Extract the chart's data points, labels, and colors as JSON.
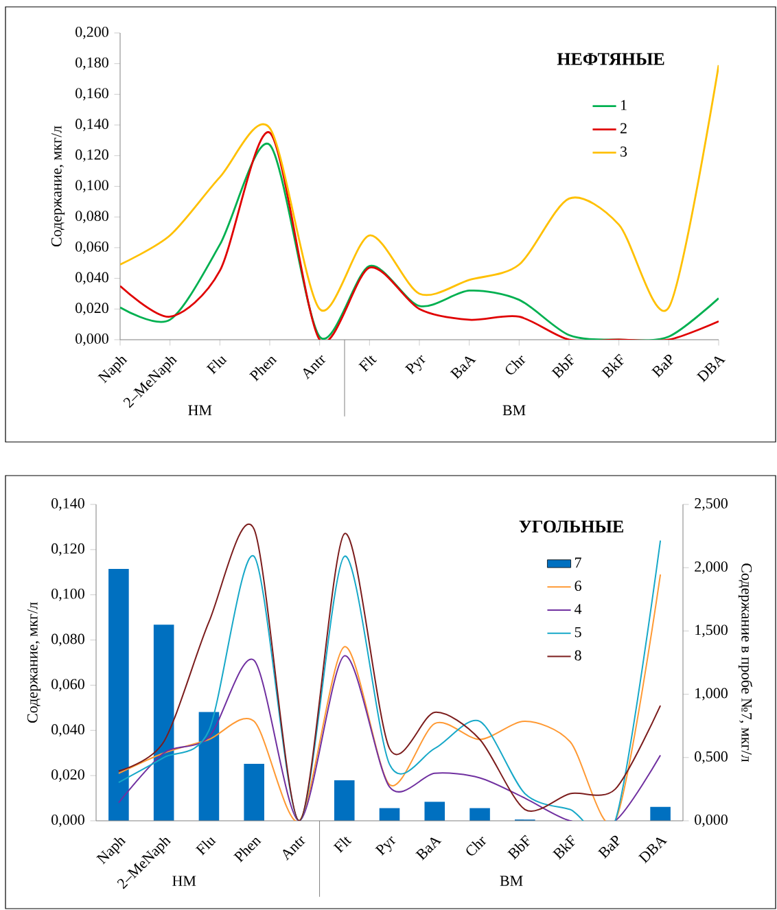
{
  "chart_data": [
    {
      "type": "line",
      "legend_title": "НЕФТЯНЫЕ",
      "ylabel": "Содержание, мкг/л",
      "legend": "top right",
      "categories": [
        "Naph",
        "2–MeNaph",
        "Flu",
        "Phen",
        "Antr",
        "Flt",
        "Pyr",
        "BaA",
        "Chr",
        "BbF",
        "BkF",
        "BaP",
        "DBA"
      ],
      "annotations": [
        "НМ",
        "ВМ"
      ],
      "ylim": [
        0,
        0.2
      ],
      "yticks": [
        {
          "value": 0,
          "label": "0,000"
        },
        {
          "value": 0.02,
          "label": "0,020"
        },
        {
          "value": 0.04,
          "label": "0,040"
        },
        {
          "value": 0.06,
          "label": "0,060"
        },
        {
          "value": 0.08,
          "label": "0,080"
        },
        {
          "value": 0.1,
          "label": "0,100"
        },
        {
          "value": 0.12,
          "label": "0,120"
        },
        {
          "value": 0.14,
          "label": "0,140"
        },
        {
          "value": 0.16,
          "label": "0,160"
        },
        {
          "value": 0.18,
          "label": "0,180"
        },
        {
          "value": 0.2,
          "label": "0,200"
        }
      ],
      "series": [
        {
          "name": "1",
          "color": "#00b050",
          "values": [
            0.021,
            0.013,
            0.062,
            0.127,
            0.002,
            0.048,
            0.022,
            0.032,
            0.026,
            0.003,
            0.0,
            0.002,
            0.027
          ]
        },
        {
          "name": "2",
          "color": "#e00000",
          "values": [
            0.035,
            0.015,
            0.045,
            0.135,
            0.0,
            0.047,
            0.02,
            0.013,
            0.015,
            0.0,
            0.0,
            0.0,
            0.012
          ]
        },
        {
          "name": "3",
          "color": "#ffc000",
          "values": [
            0.049,
            0.068,
            0.106,
            0.138,
            0.02,
            0.068,
            0.03,
            0.039,
            0.049,
            0.092,
            0.075,
            0.021,
            0.179
          ]
        }
      ]
    },
    {
      "type": "line",
      "legend_title": "УГОЛЬНЫЕ",
      "ylabel": "Содержание, мкг/л",
      "y2label": "Содержание в пробе №7, мкг/л",
      "legend": "top right",
      "categories": [
        "Naph",
        "2–MeNaph",
        "Flu",
        "Phen",
        "Antr",
        "Flt",
        "Pyr",
        "BaA",
        "Chr",
        "BbF",
        "BkF",
        "BaP",
        "DBA"
      ],
      "annotations": [
        "НМ",
        "ВМ"
      ],
      "ylim": [
        0,
        0.14
      ],
      "yticks": [
        {
          "value": 0,
          "label": "0,000"
        },
        {
          "value": 0.02,
          "label": "0,020"
        },
        {
          "value": 0.04,
          "label": "0,040"
        },
        {
          "value": 0.06,
          "label": "0,060"
        },
        {
          "value": 0.08,
          "label": "0,080"
        },
        {
          "value": 0.1,
          "label": "0,100"
        },
        {
          "value": 0.12,
          "label": "0,120"
        },
        {
          "value": 0.14,
          "label": "0,140"
        }
      ],
      "y2lim": [
        0,
        2.5
      ],
      "y2ticks": [
        {
          "value": 0,
          "label": "0,000"
        },
        {
          "value": 0.5,
          "label": "0,500"
        },
        {
          "value": 1,
          "label": "1,000"
        },
        {
          "value": 1.5,
          "label": "1,500"
        },
        {
          "value": 2,
          "label": "2,000"
        },
        {
          "value": 2.5,
          "label": "2,500"
        }
      ],
      "series": [
        {
          "name": "7",
          "type": "bar",
          "axis": "y2",
          "color": "#0070c0",
          "values": [
            1.99,
            1.55,
            0.86,
            0.45,
            0.0,
            0.32,
            0.1,
            0.15,
            0.1,
            0.01,
            0.0,
            null,
            0.11
          ]
        },
        {
          "name": "6",
          "color": "#ff9933",
          "values": [
            0.021,
            0.03,
            0.036,
            0.044,
            0.0,
            0.077,
            0.016,
            0.043,
            0.036,
            0.044,
            0.035,
            0.0,
            0.109
          ]
        },
        {
          "name": "4",
          "color": "#7030a0",
          "values": [
            0.008,
            0.03,
            0.037,
            0.071,
            0.0,
            0.073,
            0.015,
            0.021,
            0.019,
            0.01,
            0.0,
            0.0,
            0.029
          ]
        },
        {
          "name": "5",
          "color": "#17a8c8",
          "values": [
            0.017,
            0.028,
            0.04,
            0.117,
            0.0,
            0.117,
            0.025,
            0.032,
            0.044,
            0.012,
            0.005,
            0.0,
            0.124
          ]
        },
        {
          "name": "8",
          "color": "#7b1c1c",
          "values": [
            0.022,
            0.035,
            0.088,
            0.129,
            0.0,
            0.127,
            0.032,
            0.048,
            0.036,
            0.005,
            0.012,
            0.014,
            0.051
          ]
        }
      ]
    }
  ]
}
